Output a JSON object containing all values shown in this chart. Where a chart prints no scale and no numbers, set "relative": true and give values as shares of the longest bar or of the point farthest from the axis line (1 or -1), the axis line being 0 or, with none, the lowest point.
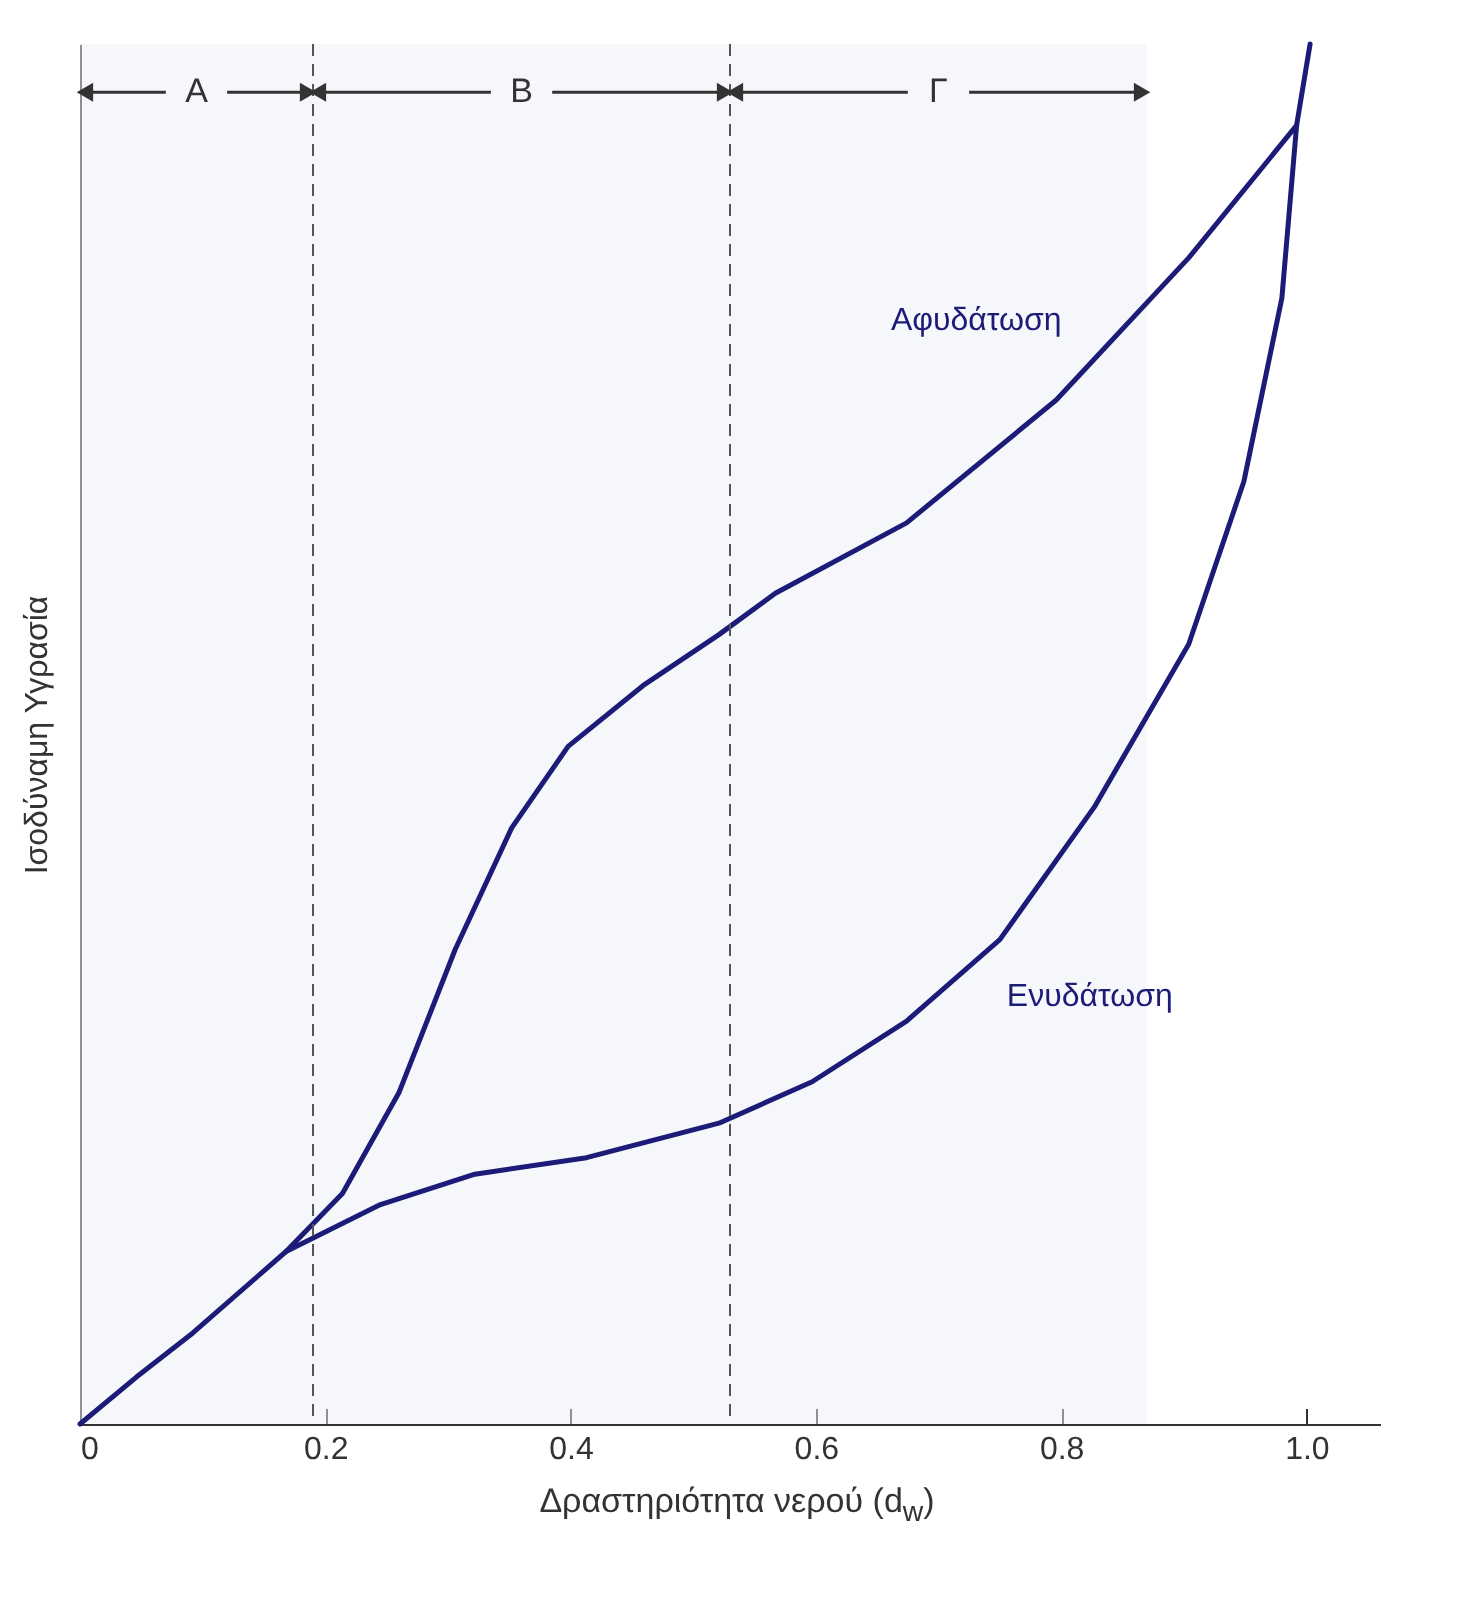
{
  "chart_data": {
    "type": "line",
    "relative": true,
    "xlabel": "Δραστηριότητα νερού (d$_{w}$)",
    "ylabel": "Ισοδύναμη Υγρασία",
    "xlim": [
      0,
      1.06
    ],
    "xticks": [
      0,
      0.2,
      0.4,
      0.6,
      0.8,
      {
        "value": 1,
        "label": "1.0"
      }
    ],
    "series": [
      {
        "name": "Ενυδάτωση",
        "color": "#1c1c78",
        "x": [
          0,
          0.046,
          0.092,
          0.168,
          0.245,
          0.322,
          0.413,
          0.521,
          0.597,
          0.674,
          0.75,
          0.827,
          0.904,
          0.949,
          0.98,
          0.992,
          1.003
        ],
        "values": [
          0,
          0.034,
          0.066,
          0.125,
          0.159,
          0.181,
          0.193,
          0.218,
          0.248,
          0.292,
          0.351,
          0.447,
          0.565,
          0.683,
          0.816,
          0.941,
          1
        ]
      },
      {
        "name": "Αφυδάτωση",
        "color": "#1c1c78",
        "x": [
          0.992,
          0.904,
          0.796,
          0.674,
          0.567,
          0.521,
          0.459,
          0.398,
          0.352,
          0.306,
          0.26,
          0.214,
          0.168
        ],
        "values": [
          0.941,
          0.845,
          0.742,
          0.653,
          0.602,
          0.572,
          0.535,
          0.491,
          0.432,
          0.344,
          0.24,
          0.167,
          0.125
        ]
      }
    ],
    "ref_lines": [
      {
        "axis": "x",
        "value": 0.19,
        "line_style": "dashed"
      },
      {
        "axis": "x",
        "value": 0.53,
        "line_style": "dashed"
      }
    ],
    "bands": [
      {
        "axis": "x",
        "from": 0,
        "to": 0.19,
        "label": "A"
      },
      {
        "axis": "x",
        "from": 0.19,
        "to": 0.53,
        "label": "B"
      },
      {
        "axis": "x",
        "from": 0.53,
        "to": 0.87,
        "label": "Γ"
      }
    ],
    "grid": false,
    "legend": false,
    "line_style": "solid",
    "marker": "none"
  }
}
